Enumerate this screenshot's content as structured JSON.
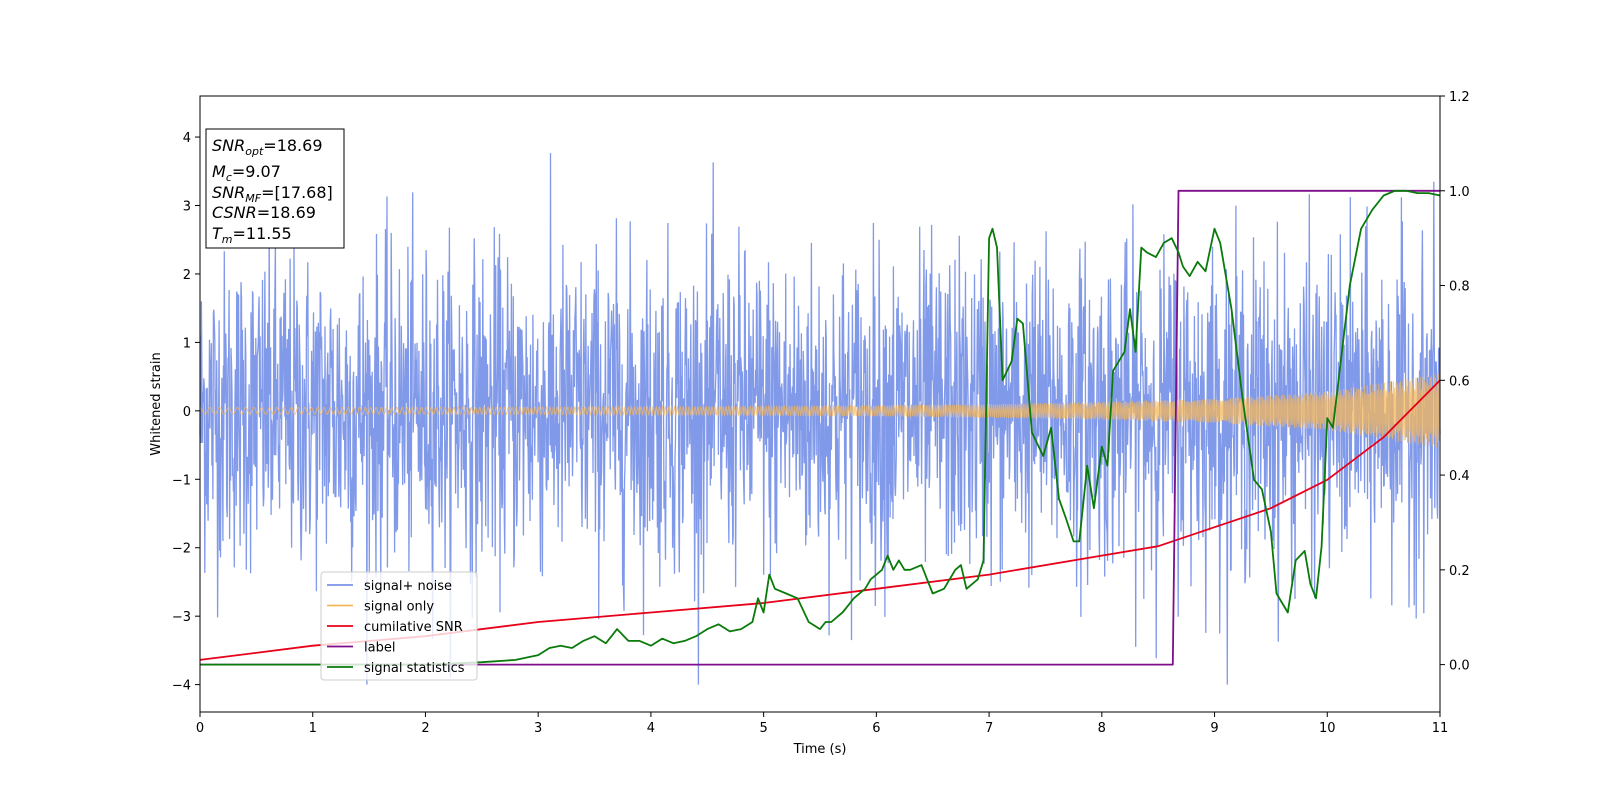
{
  "chart_data": {
    "type": "line",
    "title": "",
    "xlabel": "Time (s)",
    "ylabel": "Whitened strain",
    "xlim": [
      0,
      11
    ],
    "ylim": [
      -4.4,
      4.6
    ],
    "ylim_right": [
      -0.1,
      1.2
    ],
    "grid": false,
    "x_ticks": [
      "0",
      "1",
      "2",
      "3",
      "4",
      "5",
      "6",
      "7",
      "8",
      "9",
      "10",
      "11"
    ],
    "y_ticks": [
      "−4",
      "−3",
      "−2",
      "−1",
      "0",
      "1",
      "2",
      "3",
      "4"
    ],
    "y_ticks_right": [
      "0.0",
      "0.2",
      "0.4",
      "0.6",
      "0.8",
      "1.0",
      "1.2"
    ],
    "legend_location": "lower-left",
    "annotation_box": [
      {
        "base": "SNR",
        "sub": "opt",
        "value": "=18.69"
      },
      {
        "base": "M",
        "sub": "c",
        "value": "=9.07"
      },
      {
        "base": "SNR",
        "sub": "MF",
        "value": "=[17.68]"
      },
      {
        "base": "CSNR",
        "sub": "",
        "value": "=18.69"
      },
      {
        "base": "T",
        "sub": "m",
        "value": "=11.55"
      }
    ],
    "series": [
      {
        "name": "signal+ noise",
        "axis": "left",
        "color": "#7a93e8",
        "description": "whitened noise envelope",
        "mean_abs_amplitude": 1.4,
        "peak_abs_amplitude": 4.2
      },
      {
        "name": "signal only",
        "axis": "left",
        "color": "#f5b75a",
        "envelope_x": [
          0,
          1,
          2,
          3,
          4,
          5,
          6,
          7,
          8,
          9,
          10,
          11
        ],
        "envelope_y": [
          0.05,
          0.05,
          0.05,
          0.055,
          0.06,
          0.07,
          0.08,
          0.1,
          0.13,
          0.18,
          0.28,
          0.55
        ]
      },
      {
        "name": "cumilative SNR",
        "axis": "right",
        "color": "#e8001a",
        "x": [
          0,
          1,
          2,
          3,
          4,
          5,
          6,
          7,
          8,
          8.5,
          9,
          9.5,
          10,
          10.5,
          11
        ],
        "y": [
          0.01,
          0.04,
          0.06,
          0.09,
          0.11,
          0.13,
          0.16,
          0.19,
          0.23,
          0.25,
          0.29,
          0.33,
          0.39,
          0.48,
          0.6
        ]
      },
      {
        "name": "label",
        "axis": "right",
        "color": "#7f0e8c",
        "x": [
          0,
          8.63,
          8.68,
          11
        ],
        "y": [
          0,
          0,
          1,
          1
        ]
      },
      {
        "name": "signal statistics",
        "axis": "right",
        "color": "#0a7a0a",
        "x": [
          0,
          1,
          2,
          2.5,
          2.8,
          3,
          3.1,
          3.2,
          3.3,
          3.4,
          3.5,
          3.6,
          3.65,
          3.7,
          3.8,
          3.9,
          4.0,
          4.1,
          4.2,
          4.3,
          4.4,
          4.5,
          4.6,
          4.7,
          4.8,
          4.9,
          4.95,
          5.0,
          5.05,
          5.1,
          5.2,
          5.3,
          5.4,
          5.5,
          5.55,
          5.6,
          5.65,
          5.7,
          5.75,
          5.8,
          5.9,
          5.95,
          6.0,
          6.05,
          6.1,
          6.15,
          6.2,
          6.25,
          6.3,
          6.4,
          6.5,
          6.6,
          6.7,
          6.75,
          6.8,
          6.9,
          6.95,
          7.0,
          7.03,
          7.07,
          7.12,
          7.2,
          7.25,
          7.3,
          7.38,
          7.48,
          7.55,
          7.62,
          7.68,
          7.75,
          7.8,
          7.87,
          7.93,
          8.0,
          8.05,
          8.1,
          8.2,
          8.25,
          8.3,
          8.35,
          8.4,
          8.48,
          8.55,
          8.62,
          8.68,
          8.72,
          8.78,
          8.85,
          8.92,
          9.0,
          9.05,
          9.15,
          9.25,
          9.35,
          9.42,
          9.5,
          9.55,
          9.65,
          9.72,
          9.8,
          9.85,
          9.9,
          9.95,
          10.0,
          10.05,
          10.1,
          10.2,
          10.3,
          10.4,
          10.5,
          10.6,
          10.7,
          10.8,
          10.9,
          11.0
        ],
        "y": [
          0,
          0,
          0.0,
          0.005,
          0.01,
          0.02,
          0.035,
          0.04,
          0.035,
          0.05,
          0.06,
          0.045,
          0.06,
          0.075,
          0.05,
          0.05,
          0.04,
          0.055,
          0.045,
          0.05,
          0.06,
          0.075,
          0.085,
          0.07,
          0.075,
          0.09,
          0.14,
          0.11,
          0.19,
          0.16,
          0.15,
          0.14,
          0.09,
          0.075,
          0.09,
          0.09,
          0.1,
          0.11,
          0.125,
          0.14,
          0.16,
          0.18,
          0.19,
          0.2,
          0.23,
          0.2,
          0.22,
          0.2,
          0.2,
          0.21,
          0.15,
          0.16,
          0.2,
          0.21,
          0.16,
          0.18,
          0.22,
          0.9,
          0.92,
          0.88,
          0.6,
          0.64,
          0.73,
          0.72,
          0.49,
          0.44,
          0.5,
          0.35,
          0.31,
          0.26,
          0.26,
          0.42,
          0.33,
          0.46,
          0.42,
          0.62,
          0.66,
          0.75,
          0.66,
          0.88,
          0.87,
          0.86,
          0.89,
          0.9,
          0.87,
          0.84,
          0.82,
          0.85,
          0.83,
          0.92,
          0.89,
          0.75,
          0.56,
          0.39,
          0.37,
          0.28,
          0.15,
          0.11,
          0.22,
          0.24,
          0.17,
          0.14,
          0.25,
          0.52,
          0.5,
          0.6,
          0.8,
          0.92,
          0.96,
          0.99,
          1.0,
          1.0,
          0.995,
          0.995,
          0.99
        ]
      }
    ]
  }
}
